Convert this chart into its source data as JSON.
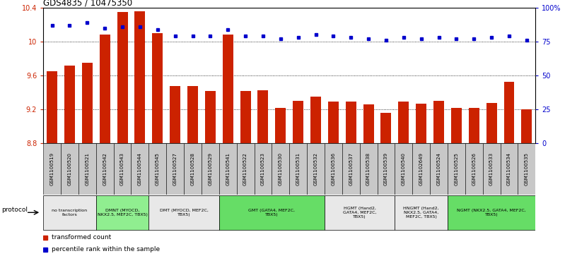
{
  "title": "GDS4835 / 10475350",
  "samples": [
    "GSM1100519",
    "GSM1100520",
    "GSM1100521",
    "GSM1100542",
    "GSM1100543",
    "GSM1100544",
    "GSM1100545",
    "GSM1100527",
    "GSM1100528",
    "GSM1100529",
    "GSM1100541",
    "GSM1100522",
    "GSM1100523",
    "GSM1100530",
    "GSM1100531",
    "GSM1100532",
    "GSM1100536",
    "GSM1100537",
    "GSM1100538",
    "GSM1100539",
    "GSM1100540",
    "GSM1102649",
    "GSM1100524",
    "GSM1100525",
    "GSM1100526",
    "GSM1100533",
    "GSM1100534",
    "GSM1100535"
  ],
  "bar_values": [
    9.65,
    9.72,
    9.75,
    10.08,
    10.35,
    10.36,
    10.1,
    9.48,
    9.48,
    9.42,
    10.08,
    9.42,
    9.43,
    9.22,
    9.3,
    9.35,
    9.29,
    9.29,
    9.26,
    9.16,
    9.29,
    9.27,
    9.3,
    9.22,
    9.22,
    9.28,
    9.53,
    9.2
  ],
  "percentile_values": [
    87,
    87,
    89,
    85,
    86,
    86,
    84,
    79,
    79,
    79,
    84,
    79,
    79,
    77,
    78,
    80,
    79,
    78,
    77,
    76,
    78,
    77,
    78,
    77,
    77,
    78,
    79,
    76
  ],
  "ymin": 8.8,
  "ymax": 10.4,
  "yticks": [
    8.8,
    9.2,
    9.6,
    10.0,
    10.4
  ],
  "ytick_labels": [
    "8.8",
    "9.2",
    "9.6",
    "10",
    "10.4"
  ],
  "yright_min": 0,
  "yright_max": 100,
  "yright_ticks": [
    0,
    25,
    50,
    75,
    100
  ],
  "yright_tick_labels": [
    "0",
    "25",
    "50",
    "75",
    "100%"
  ],
  "bar_color": "#cc2200",
  "dot_color": "#0000cc",
  "protocols": [
    {
      "label": "no transcription\nfactors",
      "start": 0,
      "end": 3,
      "color": "#e8e8e8"
    },
    {
      "label": "DMNT (MYOCD,\nNKX2.5, MEF2C, TBX5)",
      "start": 3,
      "end": 6,
      "color": "#90ee90"
    },
    {
      "label": "DMT (MYOCD, MEF2C,\nTBX5)",
      "start": 6,
      "end": 10,
      "color": "#e8e8e8"
    },
    {
      "label": "GMT (GATA4, MEF2C,\nTBX5)",
      "start": 10,
      "end": 16,
      "color": "#66dd66"
    },
    {
      "label": "HGMT (Hand2,\nGATA4, MEF2C,\nTBX5)",
      "start": 16,
      "end": 20,
      "color": "#e8e8e8"
    },
    {
      "label": "HNGMT (Hand2,\nNKX2.5, GATA4,\nMEF2C, TBX5)",
      "start": 20,
      "end": 23,
      "color": "#e8e8e8"
    },
    {
      "label": "NGMT (NKX2.5, GATA4, MEF2C,\nTBX5)",
      "start": 23,
      "end": 28,
      "color": "#66dd66"
    }
  ],
  "sample_cell_color": "#c8c8c8",
  "legend_bar_label": "transformed count",
  "legend_dot_label": "percentile rank within the sample",
  "protocol_label": "protocol"
}
